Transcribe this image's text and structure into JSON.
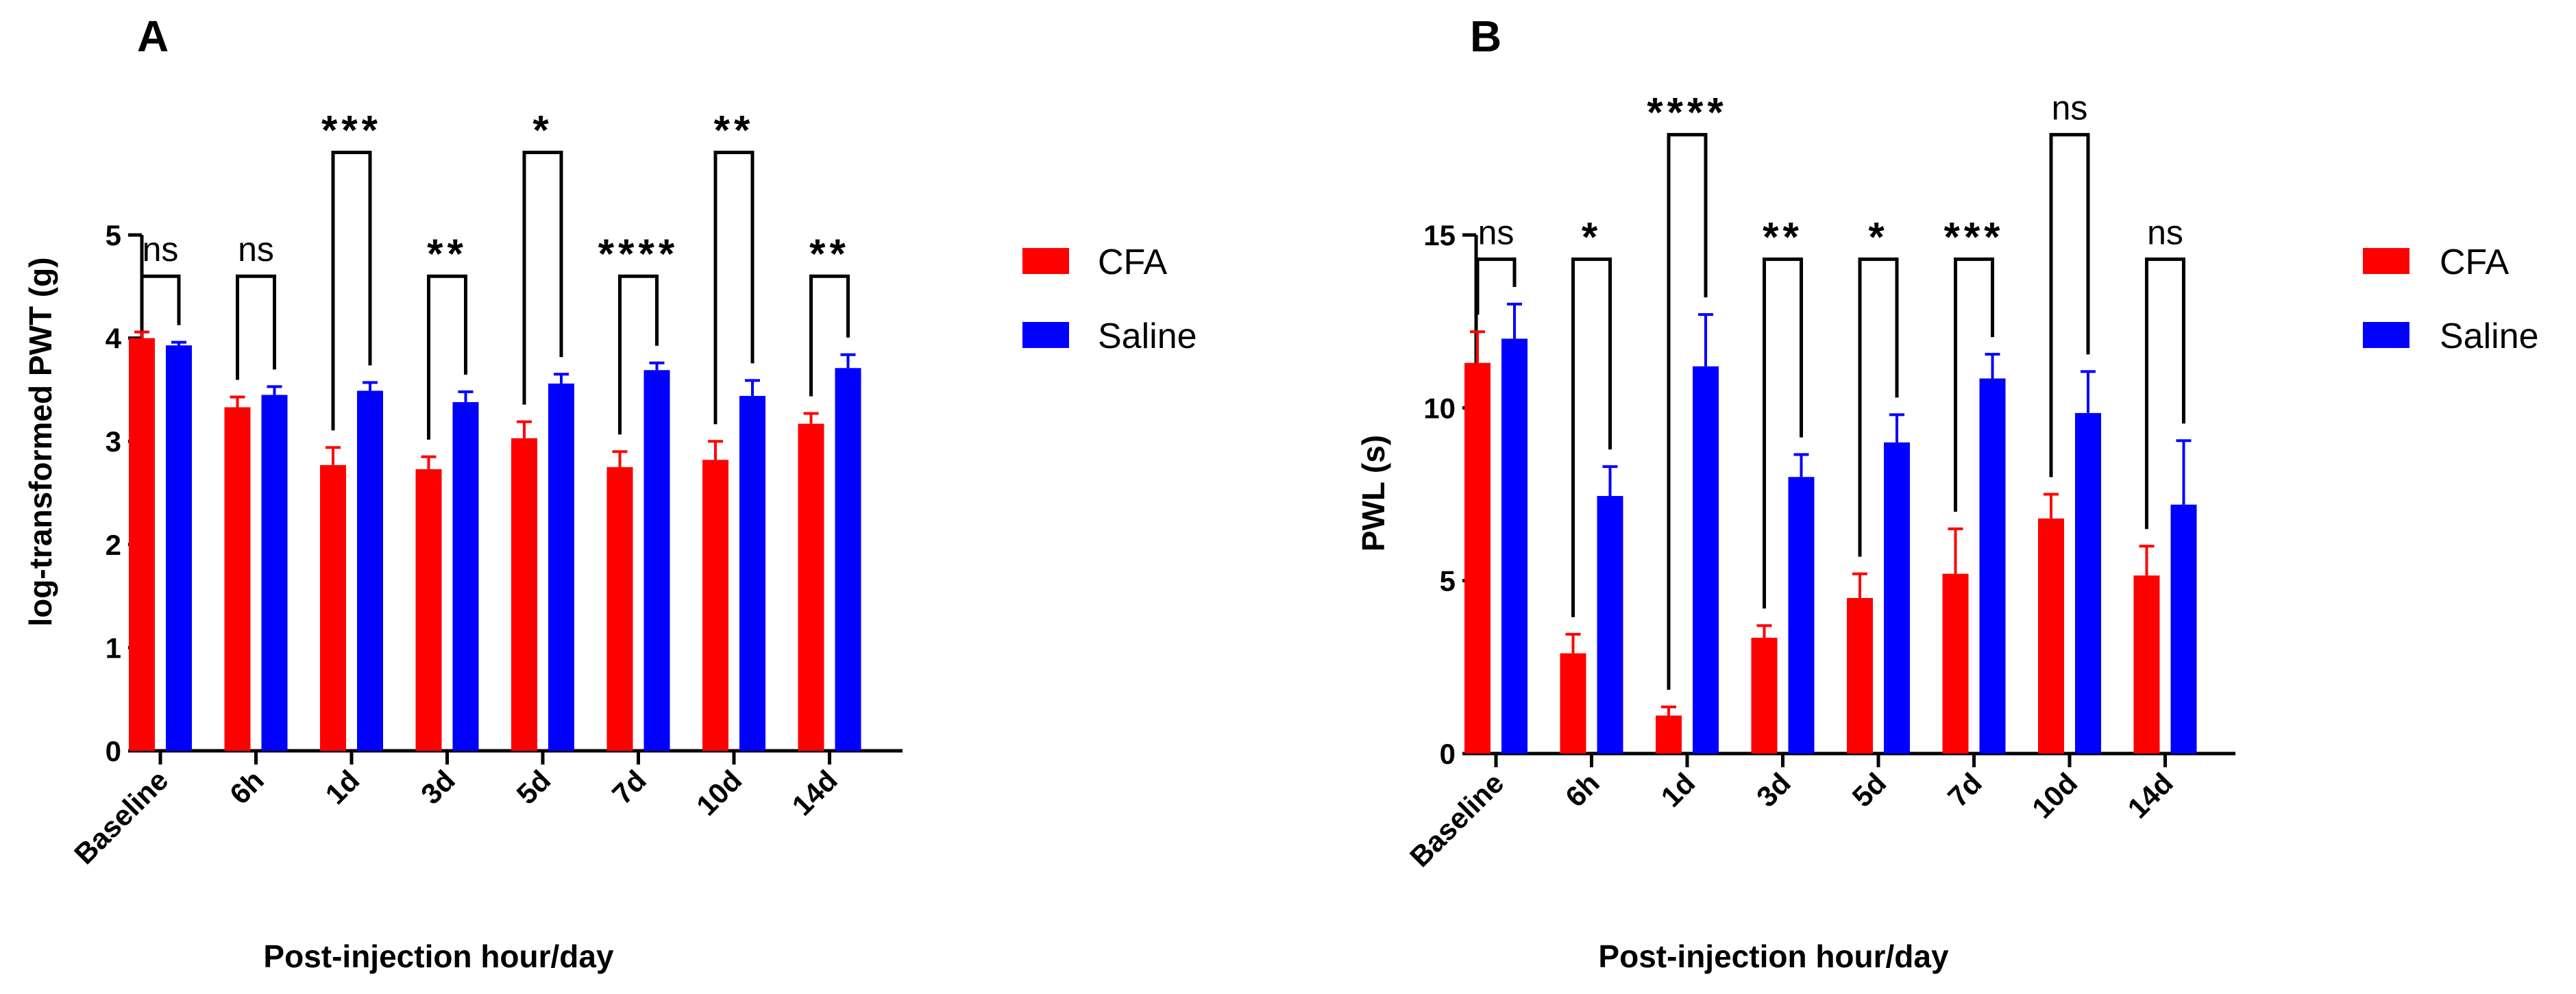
{
  "chart_data": [
    {
      "panel": "A",
      "type": "bar",
      "title": "",
      "ylabel": "log-transformed PWT (g)",
      "xlabel": "Post-injection hour/day",
      "ylim": [
        0,
        5
      ],
      "yticks": [
        0,
        1,
        2,
        3,
        4,
        5
      ],
      "categories": [
        "Baseline",
        "6h",
        "1d",
        "3d",
        "5d",
        "7d",
        "10d",
        "14d"
      ],
      "series": [
        {
          "name": "CFA",
          "color": "#ff0000",
          "values": [
            4.0,
            3.33,
            2.77,
            2.73,
            3.03,
            2.75,
            2.82,
            3.17
          ],
          "errors": [
            0.06,
            0.1,
            0.17,
            0.12,
            0.16,
            0.15,
            0.18,
            0.1
          ]
        },
        {
          "name": "Saline",
          "color": "#0000ff",
          "values": [
            3.93,
            3.45,
            3.49,
            3.38,
            3.56,
            3.69,
            3.44,
            3.71
          ],
          "errors": [
            0.03,
            0.08,
            0.08,
            0.1,
            0.09,
            0.07,
            0.15,
            0.13
          ]
        }
      ],
      "significance": [
        {
          "label": "ns",
          "top": 4.6
        },
        {
          "label": "ns",
          "top": 4.6
        },
        {
          "label": "***",
          "top": 5.8
        },
        {
          "label": "**",
          "top": 4.6
        },
        {
          "label": "*",
          "top": 5.8
        },
        {
          "label": "****",
          "top": 4.6
        },
        {
          "label": "**",
          "top": 5.8
        },
        {
          "label": "**",
          "top": 4.6
        }
      ],
      "legend": [
        "CFA",
        "Saline"
      ]
    },
    {
      "panel": "B",
      "type": "bar",
      "title": "",
      "ylabel": "PWL (s)",
      "xlabel": "Post-injection hour/day",
      "ylim": [
        0,
        15
      ],
      "yticks": [
        0,
        5,
        10,
        15
      ],
      "categories": [
        "Baseline",
        "6h",
        "1d",
        "3d",
        "5d",
        "7d",
        "10d",
        "14d"
      ],
      "series": [
        {
          "name": "CFA",
          "color": "#ff0000",
          "values": [
            11.3,
            2.9,
            1.1,
            3.35,
            4.5,
            5.2,
            6.8,
            5.15
          ],
          "errors": [
            0.9,
            0.55,
            0.25,
            0.35,
            0.7,
            1.3,
            0.7,
            0.85
          ]
        },
        {
          "name": "Saline",
          "color": "#0000ff",
          "values": [
            12.0,
            7.45,
            11.2,
            8.0,
            9.0,
            10.85,
            9.85,
            7.2
          ],
          "errors": [
            1.0,
            0.85,
            1.5,
            0.65,
            0.8,
            0.7,
            1.2,
            1.85
          ]
        }
      ],
      "significance": [
        {
          "label": "ns",
          "top": 14.3
        },
        {
          "label": "*",
          "top": 14.3
        },
        {
          "label": "****",
          "top": 17.9
        },
        {
          "label": "**",
          "top": 14.3
        },
        {
          "label": "*",
          "top": 14.3
        },
        {
          "label": "***",
          "top": 14.3
        },
        {
          "label": "ns",
          "top": 17.9
        },
        {
          "label": "ns",
          "top": 14.3
        }
      ],
      "legend": [
        "CFA",
        "Saline"
      ]
    }
  ]
}
